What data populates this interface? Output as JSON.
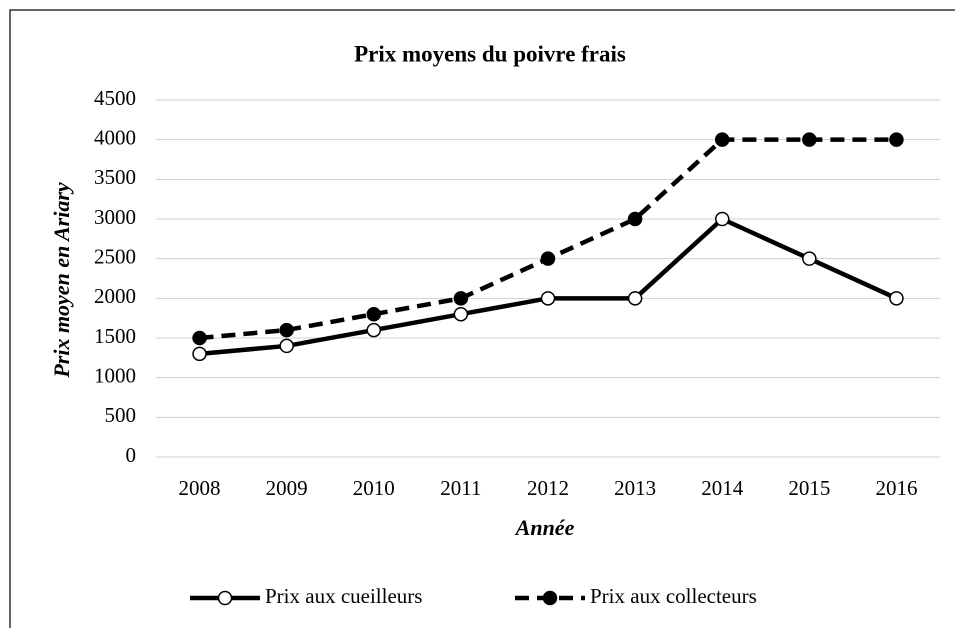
{
  "chart_data": {
    "type": "line",
    "title": "Prix moyens du poivre frais",
    "x_label": "Année",
    "y_label": "Prix moyen en Ariary",
    "categories": [
      "2008",
      "2009",
      "2010",
      "2011",
      "2012",
      "2013",
      "2014",
      "2015",
      "2016"
    ],
    "series": [
      {
        "name": "Prix aux cueilleurs",
        "color": "#000000",
        "dashed": false,
        "marker_fill": "#ffffff",
        "values": [
          1300,
          1400,
          1600,
          1800,
          2000,
          2000,
          3000,
          2500,
          2000
        ]
      },
      {
        "name": "Prix aux collecteurs",
        "color": "#000000",
        "dashed": true,
        "marker_fill": "#000000",
        "values": [
          1500,
          1600,
          1800,
          2000,
          2500,
          3000,
          4000,
          4000,
          4000
        ]
      }
    ],
    "ylim": [
      0,
      4500
    ],
    "yticks": [
      0,
      500,
      1000,
      1500,
      2000,
      2500,
      3000,
      3500,
      4000,
      4500
    ],
    "grid": true,
    "legend": "bottom"
  }
}
